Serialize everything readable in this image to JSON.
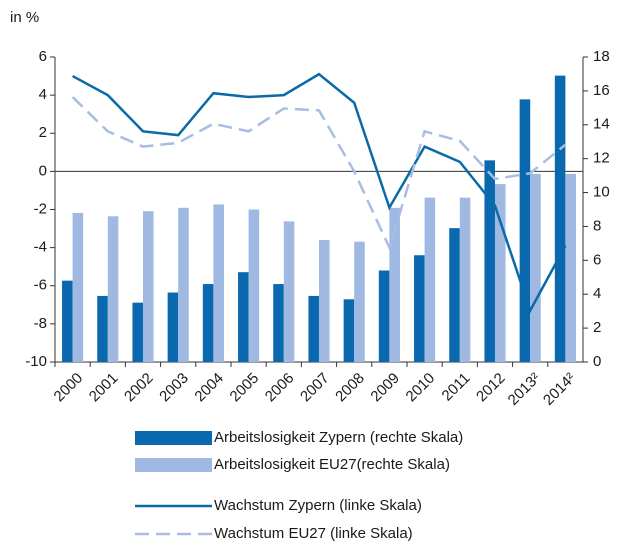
{
  "chart_data": {
    "type": "bar",
    "y_axis_label": "in %",
    "categories": [
      "2000",
      "2001",
      "2002",
      "2003",
      "2004",
      "2005",
      "2006",
      "2007",
      "2008",
      "2009",
      "2010",
      "2011",
      "2012",
      "2013²",
      "2014²"
    ],
    "ylim": [
      -10,
      6
    ],
    "yticks": [
      -10,
      -8,
      -6,
      -4,
      -2,
      0,
      2,
      4,
      6
    ],
    "y2lim": [
      0,
      18
    ],
    "y2ticks": [
      0,
      2,
      4,
      6,
      8,
      10,
      12,
      14,
      16,
      18
    ],
    "series": [
      {
        "name": "Arbeitslosigkeit Zypern (rechte Skala)",
        "type": "bar",
        "axis": "y2",
        "color": "#0a68ae",
        "values": [
          4.8,
          3.9,
          3.5,
          4.1,
          4.6,
          5.3,
          4.6,
          3.9,
          3.7,
          5.4,
          6.3,
          7.9,
          11.9,
          15.5,
          16.9
        ]
      },
      {
        "name": "Arbeitslosigkeit EU27(rechte Skala)",
        "type": "bar",
        "axis": "y2",
        "color": "#9fb9e3",
        "values": [
          8.8,
          8.6,
          8.9,
          9.1,
          9.3,
          9.0,
          8.3,
          7.2,
          7.1,
          9.1,
          9.7,
          9.7,
          10.5,
          11.1,
          11.1
        ]
      },
      {
        "name": "Wachstum Zypern (linke Skala)",
        "type": "line",
        "color": "#0a6aa8",
        "dashed": false,
        "values": [
          5.0,
          4.0,
          2.1,
          1.9,
          4.1,
          3.9,
          4.0,
          5.1,
          3.6,
          -1.9,
          1.3,
          0.5,
          -1.8,
          -7.3,
          -3.9
        ]
      },
      {
        "name": "Wachstum EU27 (linke Skala)",
        "type": "line",
        "color": "#a8bde3",
        "dashed": true,
        "values": [
          3.9,
          2.1,
          1.3,
          1.5,
          2.5,
          2.1,
          3.3,
          3.2,
          0.0,
          -4.0,
          2.1,
          1.6,
          -0.4,
          -0.1,
          1.4
        ]
      }
    ]
  }
}
